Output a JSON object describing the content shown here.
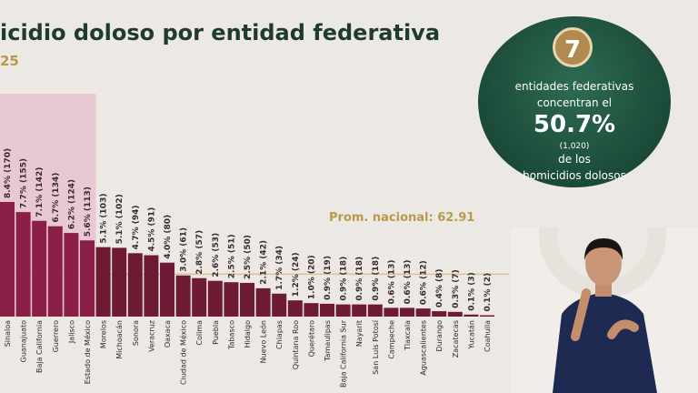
{
  "header": {
    "title": "icidio doloso por entidad federativa",
    "subtitle": "25"
  },
  "average": {
    "label": "Prom. nacional: 62.91",
    "value": 62.91
  },
  "highlight": {
    "count": "7",
    "line1": "entidades federativas",
    "line2": "concentran el",
    "percent": "50.7%",
    "count_detail": "(1,020)",
    "line3": "de los",
    "line4": "homicidios dolosos"
  },
  "chart_data": {
    "type": "bar",
    "categories": [
      "Sinaloa",
      "Guanajuato",
      "Baja California",
      "Guerrero",
      "Jalisco",
      "Estado de México",
      "Morelos",
      "Michoacán",
      "Sonora",
      "Veracruz",
      "Oaxaca",
      "Ciudad de México",
      "Colima",
      "Puebla",
      "Tabasco",
      "Hidalgo",
      "Nuevo León",
      "Chiapas",
      "Quintana Roo",
      "Querétaro",
      "Tamaulipas",
      "Baja California Sur",
      "Nayarit",
      "San Luis Potosí",
      "Campeche",
      "Tlaxcala",
      "Aguascalientes",
      "Durango",
      "Zacatecas",
      "Yucatán",
      "Coahuila"
    ],
    "values": [
      170,
      155,
      142,
      134,
      124,
      113,
      103,
      102,
      94,
      91,
      80,
      61,
      57,
      53,
      51,
      50,
      42,
      34,
      24,
      20,
      19,
      18,
      18,
      18,
      13,
      13,
      12,
      8,
      7,
      3,
      2
    ],
    "data_labels": [
      "8.4% (170)",
      "7.7% (155)",
      "7.1% (142)",
      "6.7% (134)",
      "6.2% (124)",
      "5.6% (113)",
      "5.1% (103)",
      "5.1% (102)",
      "4.7% (94)",
      "4.5% (91)",
      "4.0% (80)",
      "3.0% (61)",
      "2.8% (57)",
      "2.6% (53)",
      "2.5% (51)",
      "2.5% (50)",
      "2.1% (42)",
      "1.7% (34)",
      "1.2% (24)",
      "1.0% (20)",
      "0.9% (19)",
      "0.9% (18)",
      "0.9% (18)",
      "0.9% (18)",
      "0.6% (13)",
      "0.6% (13)",
      "0.6% (12)",
      "0.4% (8)",
      "0.3% (7)",
      "0.1% (3)",
      "0.1% (2)"
    ],
    "highlighted_count": 6,
    "colors": {
      "top": "#8a1f47",
      "other": "#6e1a34",
      "highlight_bg": "#e8c9d3",
      "avg_line": "#d8c48a"
    }
  }
}
